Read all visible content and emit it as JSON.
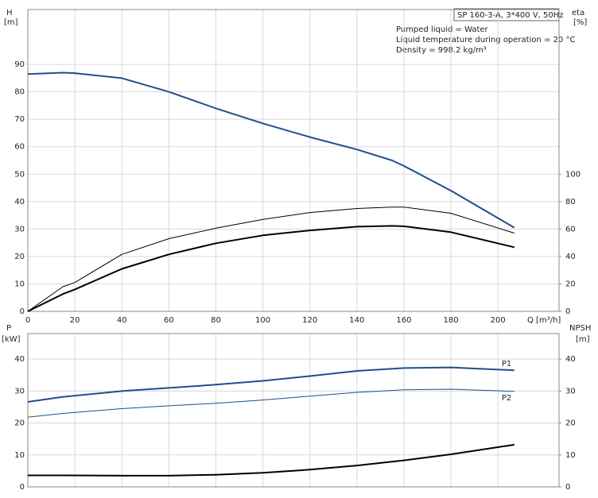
{
  "chart_data": [
    {
      "type": "line",
      "y_label": [
        "H",
        "[m]"
      ],
      "y2_label": [
        "eta",
        "[%]"
      ],
      "x_label": "Q [m³/h]",
      "annotations": [
        "SP 160-3-A, 3*400 V, 50Hz",
        "Pumped liquid = Water",
        "Liquid temperature during operation = 20 °C",
        "Density = 998.2 kg/m³"
      ],
      "x": [
        0,
        15,
        20,
        40,
        60,
        80,
        100,
        120,
        140,
        155,
        160,
        180,
        207
      ],
      "xlim": [
        0,
        226
      ],
      "xticks": [
        0,
        20,
        40,
        60,
        80,
        100,
        120,
        140,
        160,
        180,
        200
      ],
      "ylim": [
        0,
        110
      ],
      "yticks": [
        0,
        10,
        20,
        30,
        40,
        50,
        60,
        70,
        80,
        90
      ],
      "y2lim": [
        0,
        220
      ],
      "y2ticks": [
        0,
        20,
        40,
        60,
        80,
        100
      ],
      "grid": true,
      "series": [
        {
          "color": "#1f4e8c",
          "line_width": 2,
          "values": [
            86.5,
            87,
            86.8,
            85,
            80,
            74,
            68.5,
            63.5,
            59,
            55,
            53,
            44,
            30.5
          ]
        },
        {
          "color": "#000000",
          "line_width": 1,
          "axis": "y2",
          "values": [
            0,
            18,
            21,
            41.5,
            53,
            60.6,
            67,
            72,
            75,
            76,
            76,
            71.5,
            57
          ]
        },
        {
          "color": "#000000",
          "line_width": 2,
          "axis": "y2",
          "values": [
            0,
            12.7,
            16,
            31,
            41.5,
            49.6,
            55.4,
            59,
            61.7,
            62.3,
            62,
            57.7,
            46.7
          ]
        }
      ]
    },
    {
      "type": "line",
      "y_label": [
        "P",
        "[kW]"
      ],
      "y2_label": [
        "NPSH",
        "[m]"
      ],
      "x": [
        0,
        15,
        40,
        60,
        80,
        100,
        120,
        140,
        160,
        180,
        207
      ],
      "xlim": [
        0,
        226
      ],
      "xticks": [
        0,
        20,
        40,
        60,
        80,
        100,
        120,
        140,
        160,
        180,
        200
      ],
      "ylim": [
        0,
        48
      ],
      "yticks": [
        0,
        10,
        20,
        30,
        40
      ],
      "y2lim": [
        0,
        48
      ],
      "y2ticks": [
        0,
        10,
        20,
        30,
        40
      ],
      "grid": true,
      "series": [
        {
          "name": "P1",
          "color": "#1f4e8c",
          "line_width": 2,
          "values": [
            26.6,
            28.2,
            30,
            31,
            32,
            33.2,
            34.7,
            36.3,
            37.2,
            37.4,
            36.5
          ]
        },
        {
          "name": "P2",
          "color": "#1f4e8c",
          "line_width": 1,
          "values": [
            21.8,
            23,
            24.5,
            25.4,
            26.2,
            27.2,
            28.4,
            29.6,
            30.4,
            30.6,
            29.9
          ]
        },
        {
          "color": "#000000",
          "line_width": 2,
          "axis": "y2",
          "values": [
            3.6,
            3.6,
            3.5,
            3.5,
            3.8,
            4.4,
            5.4,
            6.7,
            8.3,
            10.2,
            13.2
          ]
        }
      ]
    }
  ]
}
